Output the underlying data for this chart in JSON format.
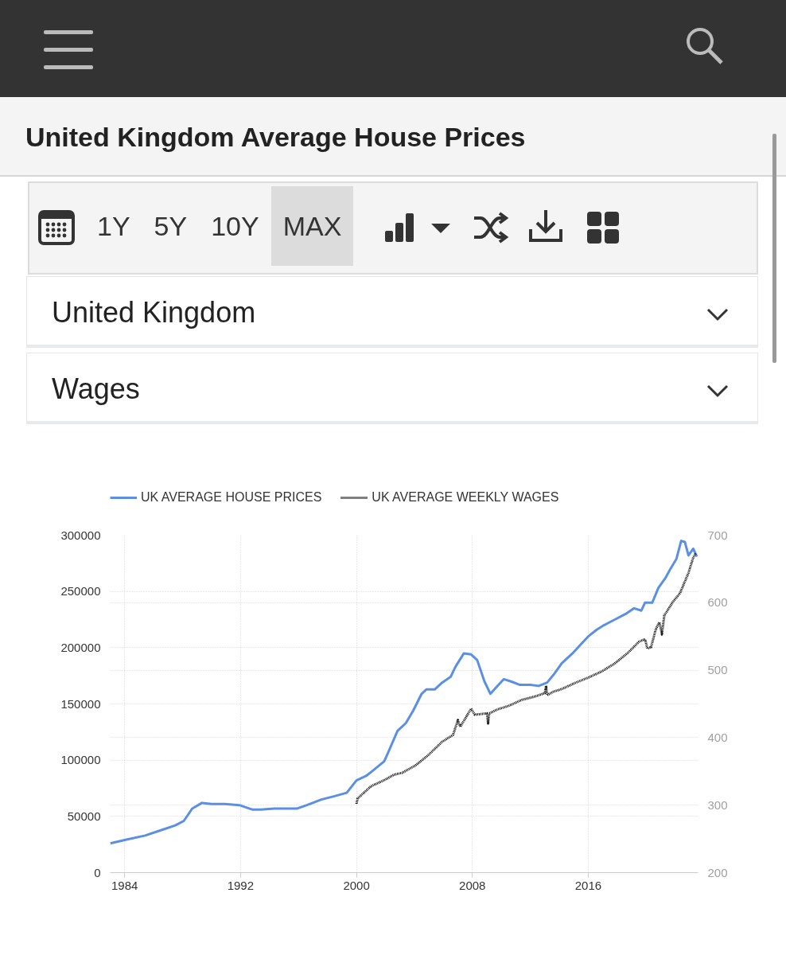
{
  "chart_data": {
    "type": "line",
    "title": "United Kingdom Average House Prices",
    "annotations": [
      "1Y",
      "5Y",
      "10Y",
      "MAX",
      "United Kingdom",
      "Wages"
    ],
    "xlim": [
      "1983-01",
      "2023-08"
    ],
    "xticks": [
      "1984",
      "1992",
      "2000",
      "2008",
      "2016"
    ],
    "ylim": [
      0,
      300000
    ],
    "yticks": [
      0,
      50000,
      100000,
      150000,
      200000,
      250000,
      300000
    ],
    "y2lim": [
      200,
      700
    ],
    "y2ticks": [
      200,
      300,
      400,
      500,
      600,
      700
    ],
    "grid": true,
    "legend": "top left",
    "series": [
      {
        "name": "UK AVERAGE HOUSE PRICES",
        "color": "#5b8fe3",
        "x": [
          "1983-01",
          "1984-01",
          "1985-06",
          "1986-08",
          "1987-07",
          "1988-02",
          "1988-09",
          "1989-05",
          "1990-01",
          "1990-12",
          "1991-12",
          "1992-11",
          "1993-06",
          "1994-05",
          "1995-05",
          "1995-12",
          "1996-08",
          "1997-08",
          "1998-07",
          "1999-05",
          "2000-01",
          "2000-09",
          "2001-03",
          "2001-12",
          "2002-03",
          "2002-11",
          "2003-06",
          "2003-12",
          "2004-07",
          "2004-11",
          "2005-06",
          "2005-12",
          "2006-07",
          "2006-11",
          "2007-06",
          "2007-12",
          "2008-05",
          "2008-11",
          "2009-04",
          "2009-09",
          "2010-03",
          "2010-09",
          "2011-04",
          "2012-01",
          "2012-08",
          "2013-03",
          "2013-09",
          "2014-03",
          "2014-12",
          "2015-07",
          "2016-01",
          "2016-08",
          "2017-02",
          "2017-11",
          "2018-08",
          "2019-03",
          "2019-09",
          "2019-12",
          "2020-06",
          "2020-11",
          "2021-05",
          "2021-09",
          "2022-02",
          "2022-06",
          "2022-09",
          "2022-12",
          "2023-04",
          "2023-07"
        ],
        "values": [
          26000,
          29000,
          33000,
          38000,
          42000,
          46000,
          57000,
          62000,
          61000,
          61000,
          60000,
          56000,
          56000,
          57000,
          57000,
          57000,
          60000,
          65000,
          68000,
          71000,
          82000,
          86000,
          91000,
          99000,
          106000,
          126000,
          133000,
          144000,
          159000,
          163000,
          163000,
          169000,
          174000,
          183000,
          195000,
          194000,
          189000,
          170000,
          159000,
          165000,
          172000,
          170000,
          167000,
          167000,
          166000,
          169000,
          177000,
          186000,
          195000,
          203000,
          210000,
          216000,
          220000,
          225000,
          230000,
          235000,
          233000,
          240000,
          240000,
          253000,
          262000,
          270000,
          279000,
          295000,
          294000,
          282000,
          288000,
          281000
        ]
      },
      {
        "name": "UK AVERAGE WEEKLY WAGES",
        "color": "#000000",
        "axis": "y2",
        "line_style": "dotted",
        "x": [
          "2000-01",
          "2000-02",
          "2001-01",
          "2001-12",
          "2002-08",
          "2003-03",
          "2004-02",
          "2005-01",
          "2005-12",
          "2006-09",
          "2007-01",
          "2007-03",
          "2007-12",
          "2008-03",
          "2009-01",
          "2009-02",
          "2009-03",
          "2009-10",
          "2010-07",
          "2011-06",
          "2012-05",
          "2013-01",
          "2013-02",
          "2013-03",
          "2013-08",
          "2014-03",
          "2015-02",
          "2016-01",
          "2016-12",
          "2017-11",
          "2018-10",
          "2019-07",
          "2019-12",
          "2020-02",
          "2020-05",
          "2020-09",
          "2020-12",
          "2021-02",
          "2021-04",
          "2021-11",
          "2022-05",
          "2022-12",
          "2023-04",
          "2023-06"
        ],
        "values": [
          302,
          310,
          328,
          337,
          345,
          348,
          359,
          375,
          394,
          404,
          426,
          416,
          443,
          434,
          436,
          421,
          436,
          442,
          447,
          456,
          461,
          466,
          477,
          463,
          468,
          472,
          481,
          489,
          498,
          510,
          526,
          542,
          546,
          532,
          534,
          561,
          571,
          553,
          581,
          601,
          614,
          644,
          667,
          673
        ]
      }
    ]
  }
}
